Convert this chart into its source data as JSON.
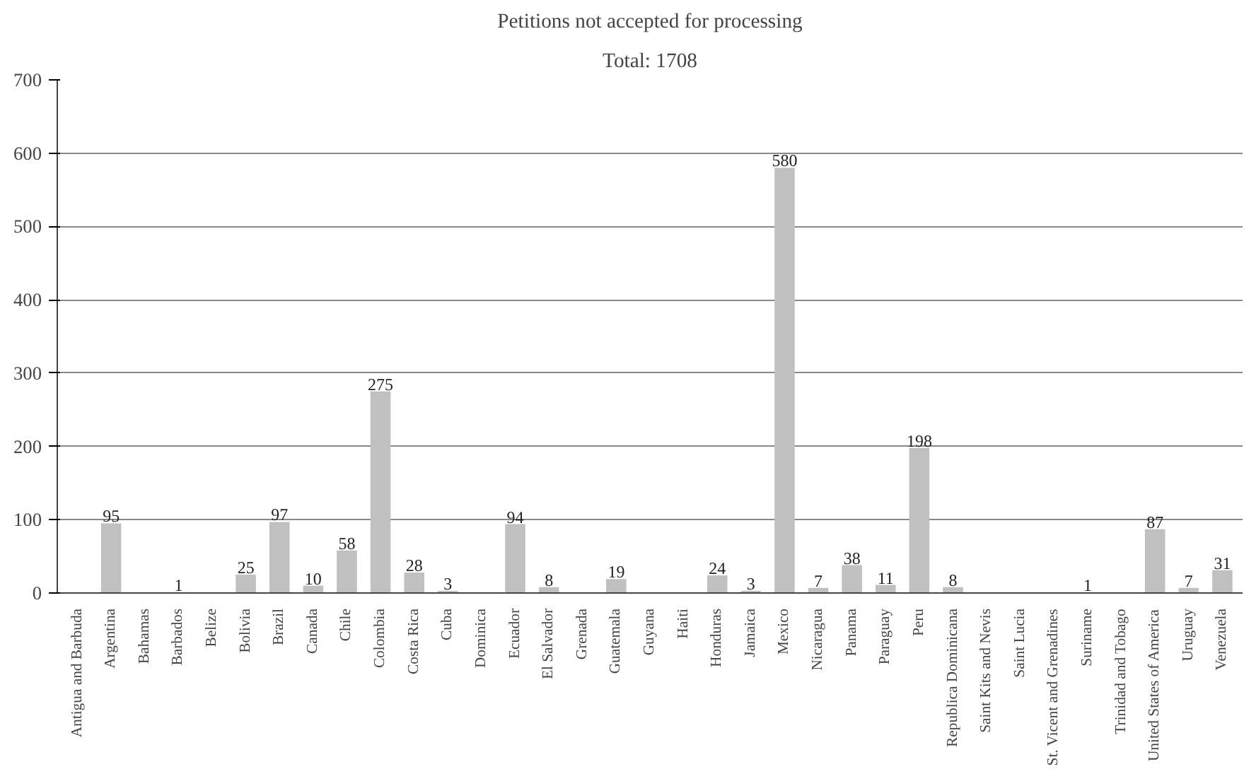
{
  "chart_data": {
    "type": "bar",
    "title": "Petitions not accepted for processing",
    "subtitle": "Total: 1708",
    "categories": [
      "Antigua and Barbuda",
      "Argentina",
      "Bahamas",
      "Barbados",
      "Belize",
      "Bolivia",
      "Brazil",
      "Canada",
      "Chile",
      "Colombia",
      "Costa Rica",
      "Cuba",
      "Dominica",
      "Ecuador",
      "El Salvador",
      "Grenada",
      "Guatemala",
      "Guyana",
      "Haiti",
      "Honduras",
      "Jamaica",
      "Mexico",
      "Nicaragua",
      "Panama",
      "Paraguay",
      "Peru",
      "Republica Dominicana",
      "Saint Kits and Nevis",
      "Saint Lucia",
      "St. Vicent and Grenadines",
      "Suriname",
      "Trinidad and Tobago",
      "United States of America",
      "Uruguay",
      "Venezuela"
    ],
    "values": [
      0,
      95,
      0,
      1,
      0,
      25,
      97,
      10,
      58,
      275,
      28,
      3,
      0,
      94,
      8,
      0,
      19,
      0,
      0,
      24,
      3,
      580,
      7,
      38,
      11,
      198,
      8,
      0,
      0,
      0,
      1,
      0,
      87,
      7,
      31
    ],
    "value_labels": [
      null,
      "95",
      null,
      "1",
      null,
      "25",
      "97",
      "10",
      "58",
      "275",
      "28",
      "3",
      null,
      "94",
      "8",
      null,
      "19",
      null,
      null,
      "24",
      "3",
      "580",
      "7",
      "38",
      "11",
      "198",
      "8",
      null,
      null,
      null,
      "1",
      null,
      "87",
      "7",
      "31"
    ],
    "color": "#c0c0c0",
    "ylim": [
      0,
      700
    ],
    "yticks": [
      0,
      100,
      200,
      300,
      400,
      500,
      600,
      700
    ],
    "grid": "y"
  }
}
